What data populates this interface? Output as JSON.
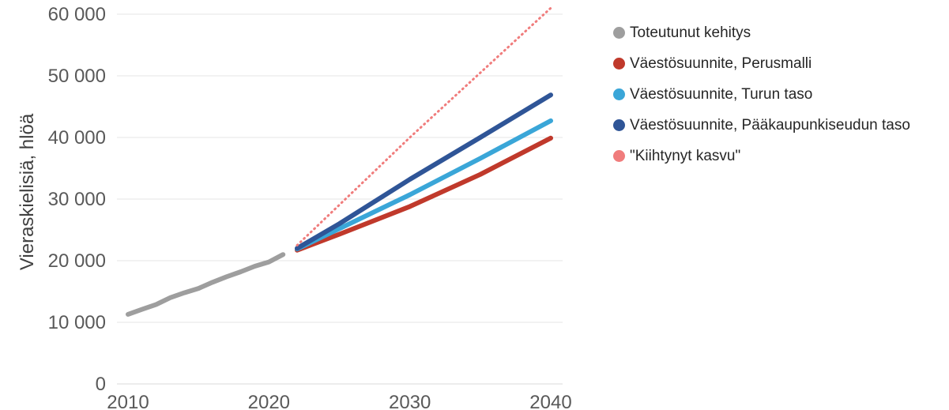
{
  "chart_data": {
    "type": "line",
    "ylabel": "Vieraskielisiä, hlöä",
    "xlim": [
      2010,
      2040
    ],
    "ylim": [
      0,
      60000
    ],
    "x_ticks": [
      2010,
      2020,
      2030,
      2040
    ],
    "y_ticks": [
      0,
      10000,
      20000,
      30000,
      40000,
      50000,
      60000
    ],
    "x_tick_labels": [
      "2010",
      "2020",
      "2030",
      "2040"
    ],
    "y_tick_labels": [
      "0",
      "10 000",
      "20 000",
      "30 000",
      "40 000",
      "50 000",
      "60 000"
    ],
    "grid": "horizontal",
    "legend_position": "right",
    "series": [
      {
        "name": "Toteutunut kehitys",
        "color": "#9e9e9e",
        "style": "solid",
        "x": [
          2010,
          2011,
          2012,
          2013,
          2014,
          2015,
          2016,
          2017,
          2018,
          2019,
          2020,
          2021
        ],
        "y": [
          11300,
          12100,
          12900,
          14000,
          14800,
          15500,
          16500,
          17400,
          18200,
          19100,
          19800,
          21000
        ]
      },
      {
        "name": "Väestösuunnite, Perusmalli",
        "color": "#c0392b",
        "style": "solid",
        "x": [
          2022,
          2025,
          2030,
          2035,
          2040
        ],
        "y": [
          21700,
          24300,
          28800,
          34000,
          39900
        ]
      },
      {
        "name": "Väestösuunnite, Turun taso",
        "color": "#3aa6d8",
        "style": "solid",
        "x": [
          2022,
          2025,
          2030,
          2035,
          2040
        ],
        "y": [
          21900,
          25200,
          30700,
          36600,
          42700
        ]
      },
      {
        "name": "Väestösuunnite, Pääkaupunkiseudun taso",
        "color": "#2f5597",
        "style": "solid",
        "x": [
          2022,
          2025,
          2030,
          2035,
          2040
        ],
        "y": [
          22000,
          26000,
          33200,
          40000,
          46900
        ]
      },
      {
        "name": "\"Kiihtynyt kasvu\"",
        "color": "#f07c7c",
        "style": "dotted",
        "x": [
          2022,
          2030,
          2040
        ],
        "y": [
          22500,
          40000,
          61000
        ]
      }
    ]
  }
}
